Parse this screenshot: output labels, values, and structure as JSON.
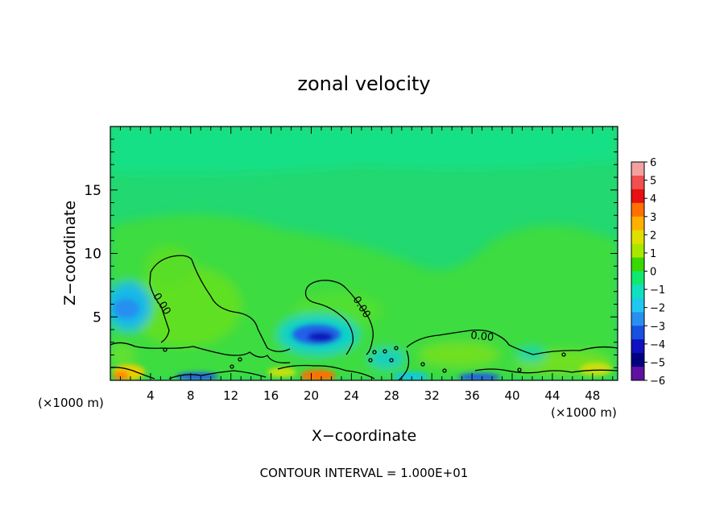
{
  "chart_data": {
    "type": "heatmap",
    "title": "zonal velocity",
    "xlabel": "X−coordinate",
    "ylabel": "Z−coordinate",
    "xlim": [
      0,
      50.5
    ],
    "ylim": [
      0,
      20
    ],
    "x_ticks": [
      4,
      8,
      12,
      16,
      20,
      24,
      28,
      32,
      36,
      40,
      44,
      48
    ],
    "y_ticks": [
      5,
      10,
      15
    ],
    "x_unit_left": "(×1000 m)",
    "x_unit_right": "(×1000 m)",
    "footer": "CONTOUR INTERVAL = 1.000E+01",
    "contour_label": "0.00",
    "colorbar": {
      "labels": [
        "6",
        "5",
        "4",
        "3",
        "2",
        "1",
        "0",
        "−1",
        "−2",
        "−3",
        "−4",
        "−5",
        "−6"
      ],
      "colors": [
        "#f4a0a0",
        "#f05050",
        "#e81010",
        "#ff7000",
        "#ffb000",
        "#e0e000",
        "#a8e800",
        "#38d800",
        "#10e870",
        "#10e0c0",
        "#20c8f0",
        "#2890f0",
        "#1850e0",
        "#1010c0",
        "#000080",
        "#6010a0"
      ]
    }
  }
}
